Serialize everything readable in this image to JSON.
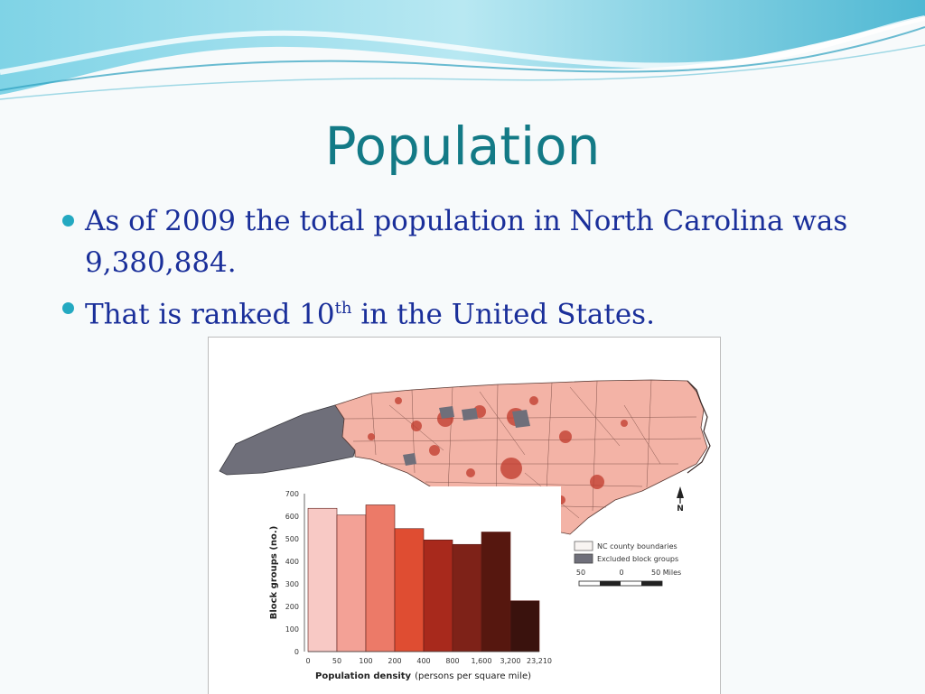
{
  "slide": {
    "title": "Population",
    "bullets": [
      {
        "text_before": "As of 2009 the total population in North Carolina was 9,380,884.",
        "sup": "",
        "text_after": ""
      },
      {
        "text_before": "That is ranked 10",
        "sup": "th",
        "text_after": " in the United States."
      }
    ]
  },
  "figure": {
    "north_label": "N",
    "legend": {
      "boundaries": "NC county boundaries",
      "excluded": "Excluded block groups"
    },
    "scale": {
      "left": "50",
      "mid": "0",
      "right": "50 Miles"
    }
  },
  "chart_data": {
    "type": "bar",
    "xlabel": "Population density",
    "xlabel_units": "(persons per square mile)",
    "ylabel": "Block groups (no.)",
    "ylim": [
      0,
      700
    ],
    "yticks": [
      "0",
      "100",
      "200",
      "300",
      "400",
      "500",
      "600",
      "700"
    ],
    "xticks": [
      "0",
      "50",
      "100",
      "200",
      "400",
      "800",
      "1,600",
      "3,200",
      "23,210"
    ],
    "values": [
      635,
      605,
      650,
      545,
      495,
      475,
      530,
      225
    ],
    "colors": [
      "#f8c9c5",
      "#f3a196",
      "#ec7a68",
      "#df4d32",
      "#a8291c",
      "#7e2218",
      "#56170f",
      "#3a120d"
    ]
  },
  "colors": {
    "title": "#137a86",
    "body_text": "#1a2f9a",
    "bullet": "#24a9c1",
    "map_fill": "#f3b3a6",
    "map_excluded": "#6f6f7a"
  }
}
